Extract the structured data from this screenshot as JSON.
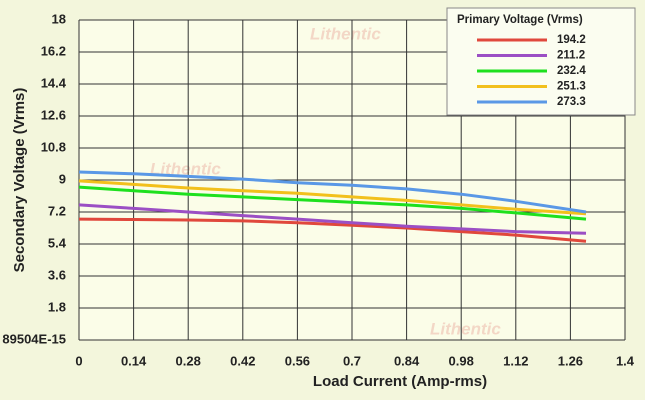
{
  "chart_data": {
    "type": "line",
    "watermark": "Lithentic",
    "xlabel": "Load Current (Amp-rms)",
    "ylabel": "Secondary Voltage (Vrms)",
    "legend_title": "Primary Voltage (Vrms)",
    "legend_position": "upper right",
    "grid": true,
    "x": [
      0,
      0.14,
      0.28,
      0.42,
      0.56,
      0.7,
      0.84,
      0.98,
      1.12,
      1.3
    ],
    "xlim": [
      0,
      1.4
    ],
    "xticks": [
      0,
      0.14,
      0.28,
      0.42,
      0.56,
      0.7,
      0.84,
      0.98,
      1.12,
      1.26,
      1.4
    ],
    "ylim": [
      0,
      18
    ],
    "yticks": [
      {
        "value": 0,
        "label": "89504E-15"
      },
      1.8,
      3.6,
      5.4,
      7.2,
      9,
      10.8,
      12.6,
      14.4,
      16.2,
      18
    ],
    "series": [
      {
        "name": "194.2",
        "color": "#e0483c",
        "values": [
          6.8,
          6.78,
          6.75,
          6.7,
          6.6,
          6.45,
          6.3,
          6.1,
          5.9,
          5.55
        ]
      },
      {
        "name": "211.2",
        "color": "#9b4fc4",
        "values": [
          7.6,
          7.4,
          7.2,
          7.0,
          6.8,
          6.6,
          6.4,
          6.25,
          6.1,
          6.0
        ]
      },
      {
        "name": "232.4",
        "color": "#1ee01e",
        "values": [
          8.6,
          8.4,
          8.2,
          8.05,
          7.9,
          7.75,
          7.6,
          7.4,
          7.15,
          6.8
        ]
      },
      {
        "name": "251.3",
        "color": "#f2c01c",
        "values": [
          8.95,
          8.75,
          8.55,
          8.4,
          8.25,
          8.05,
          7.85,
          7.6,
          7.35,
          7.1
        ]
      },
      {
        "name": "273.3",
        "color": "#5a98e6",
        "values": [
          9.45,
          9.35,
          9.2,
          9.05,
          8.85,
          8.7,
          8.5,
          8.2,
          7.8,
          7.2
        ]
      }
    ]
  }
}
